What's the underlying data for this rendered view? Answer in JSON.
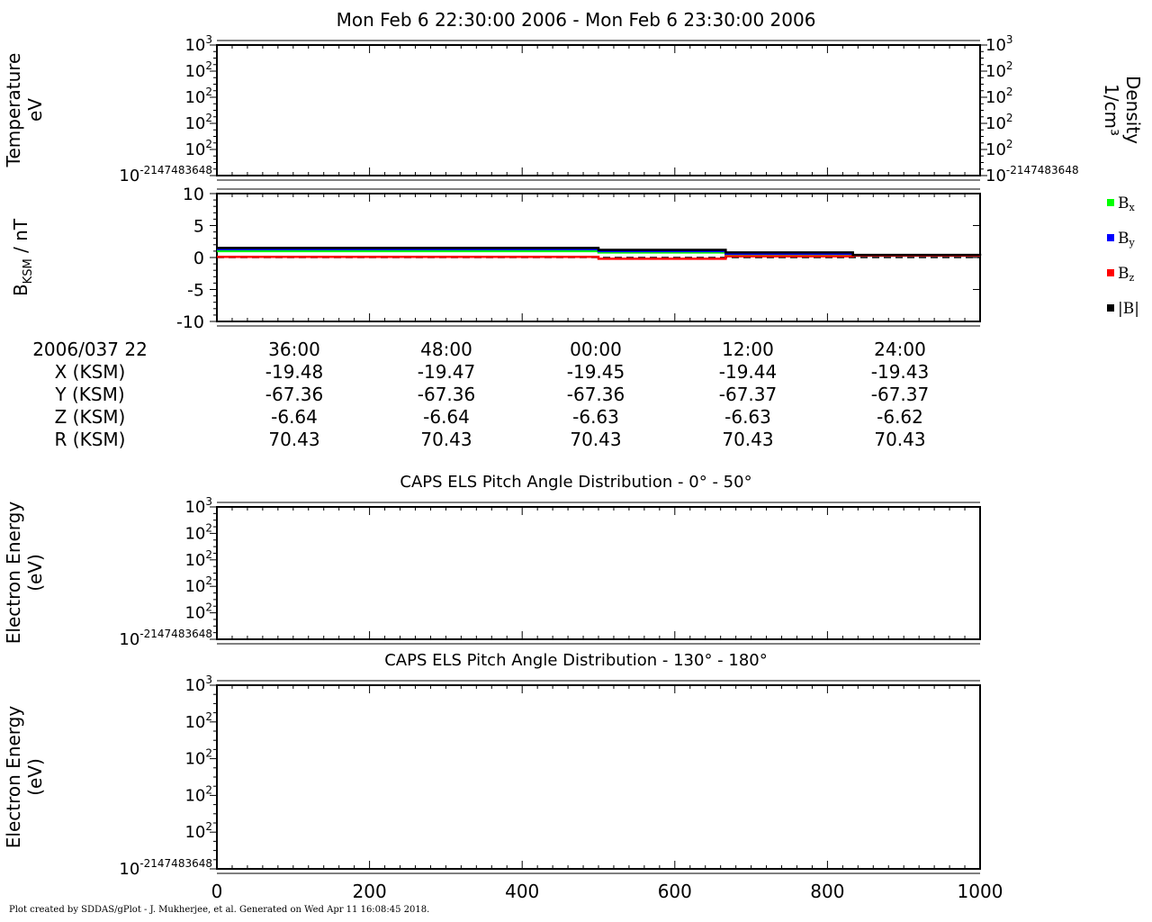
{
  "page": {
    "title": "Mon Feb 6 22:30:00 2006 - Mon Feb 6 23:30:00 2006",
    "footer": "Plot created by SDDAS/gPlot - J. Mukherjee, et al.  Generated on Wed Apr 11 16:08:45 2018."
  },
  "chart_data": [
    {
      "type": "line",
      "name": "temperature-density-panel",
      "ylabel": [
        "Temperature",
        "eV"
      ],
      "ylabel_right": [
        "Density",
        "1/cm³"
      ],
      "yticks": [
        {
          "base": "10",
          "exp": "-2147483648"
        },
        {
          "base": "10",
          "exp": "2"
        },
        {
          "base": "10",
          "exp": "2"
        },
        {
          "base": "10",
          "exp": "2"
        },
        {
          "base": "10",
          "exp": "2"
        },
        {
          "base": "10",
          "exp": "3"
        }
      ],
      "yticks_right": [
        {
          "base": "10",
          "exp": "-2147483648"
        },
        {
          "base": "10",
          "exp": "2"
        },
        {
          "base": "10",
          "exp": "2"
        },
        {
          "base": "10",
          "exp": "2"
        },
        {
          "base": "10",
          "exp": "2"
        },
        {
          "base": "10",
          "exp": "3"
        }
      ],
      "series": []
    },
    {
      "type": "line",
      "name": "magnetic-field-panel",
      "ylabel": {
        "main": "B",
        "sub": "KSM",
        "rest": " / nT"
      },
      "ylim": [
        -10,
        10
      ],
      "yticks": [
        -10,
        -5,
        0,
        5,
        10
      ],
      "x_minutes": [
        0,
        10,
        20,
        30,
        40,
        50,
        60
      ],
      "series": [
        {
          "name": "Bx",
          "label": {
            "main": "B",
            "sub": "x"
          },
          "color": "#00ff00",
          "values": [
            1.0,
            1.0,
            1.0,
            0.8,
            0.5,
            0.3,
            0.3
          ]
        },
        {
          "name": "By",
          "label": {
            "main": "B",
            "sub": "y"
          },
          "color": "#0000ff",
          "values": [
            1.3,
            1.3,
            1.3,
            1.0,
            0.6,
            0.3,
            0.3
          ]
        },
        {
          "name": "Bz",
          "label": {
            "main": "B",
            "sub": "z"
          },
          "color": "#ff0000",
          "values": [
            0.1,
            0.1,
            0.1,
            -0.2,
            0.2,
            0.3,
            0.3
          ]
        },
        {
          "name": "|B|",
          "label": {
            "main": "|B|",
            "sub": ""
          },
          "color": "#000000",
          "values": [
            1.5,
            1.5,
            1.5,
            1.2,
            0.8,
            0.4,
            0.3
          ]
        }
      ],
      "zero_line": true
    },
    {
      "type": "table",
      "name": "ephemeris",
      "columns": [
        "2006/037 22",
        "36:00",
        "48:00",
        "00:00",
        "12:00",
        "24:00"
      ],
      "rows": [
        {
          "label": "X (KSM)",
          "values": [
            "-19.48",
            "-19.47",
            "-19.45",
            "-19.44",
            "-19.43"
          ]
        },
        {
          "label": "Y (KSM)",
          "values": [
            "-67.36",
            "-67.36",
            "-67.36",
            "-67.37",
            "-67.37"
          ]
        },
        {
          "label": "Z (KSM)",
          "values": [
            "-6.64",
            "-6.64",
            "-6.63",
            "-6.63",
            "-6.62"
          ]
        },
        {
          "label": "R (KSM)",
          "values": [
            "70.43",
            "70.43",
            "70.43",
            "70.43",
            "70.43"
          ]
        }
      ]
    },
    {
      "type": "heatmap",
      "name": "pad-0-50-panel",
      "title": "CAPS ELS Pitch Angle Distribution - 0° - 50°",
      "ylabel": [
        "Electron Energy",
        "(eV)"
      ],
      "yticks": [
        {
          "base": "10",
          "exp": "-2147483648"
        },
        {
          "base": "10",
          "exp": "2"
        },
        {
          "base": "10",
          "exp": "2"
        },
        {
          "base": "10",
          "exp": "2"
        },
        {
          "base": "10",
          "exp": "2"
        },
        {
          "base": "10",
          "exp": "3"
        }
      ]
    },
    {
      "type": "heatmap",
      "name": "pad-130-180-panel",
      "title": "CAPS ELS Pitch Angle Distribution - 130° - 180°",
      "ylabel": [
        "Electron Energy",
        "(eV)"
      ],
      "yticks": [
        {
          "base": "10",
          "exp": "-2147483648"
        },
        {
          "base": "10",
          "exp": "2"
        },
        {
          "base": "10",
          "exp": "2"
        },
        {
          "base": "10",
          "exp": "2"
        },
        {
          "base": "10",
          "exp": "2"
        },
        {
          "base": "10",
          "exp": "3"
        }
      ],
      "xticks": [
        "0",
        "200",
        "400",
        "600",
        "800",
        "1000"
      ]
    }
  ]
}
